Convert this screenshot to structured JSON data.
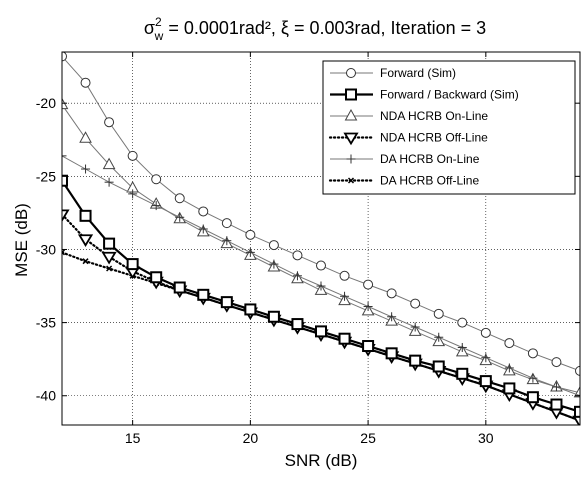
{
  "chart_data": {
    "type": "line",
    "title": {
      "sigma": "σ",
      "sup": "2",
      "sub": "w",
      "rest": " = 0.0001rad², ξ = 0.003rad, Iteration = 3"
    },
    "xlabel": "SNR (dB)",
    "ylabel": "MSE (dB)",
    "xlim": [
      12,
      34
    ],
    "ylim": [
      -42,
      -16.5
    ],
    "xticks": [
      15,
      20,
      25,
      30
    ],
    "yticks": [
      -20,
      -25,
      -30,
      -35,
      -40
    ],
    "xtick_labels": [
      "15",
      "20",
      "25",
      "30"
    ],
    "ytick_labels": [
      "-20",
      "-25",
      "-30",
      "-35",
      "-40"
    ],
    "grid": true,
    "legend_position": "top-right",
    "x": [
      12,
      13,
      14,
      15,
      16,
      17,
      18,
      19,
      20,
      21,
      22,
      23,
      24,
      25,
      26,
      27,
      28,
      29,
      30,
      31,
      32,
      33,
      34
    ],
    "series": [
      {
        "name": "Forward (Sim)",
        "marker": "circle",
        "line": "solid-thin",
        "values": [
          -16.8,
          -18.6,
          -21.3,
          -23.6,
          -25.2,
          -26.5,
          -27.4,
          -28.2,
          -29.0,
          -29.7,
          -30.4,
          -31.1,
          -31.8,
          -32.4,
          -33.0,
          -33.7,
          -34.4,
          -35.0,
          -35.7,
          -36.4,
          -37.1,
          -37.7,
          -38.3
        ]
      },
      {
        "name": "Forward / Backward (Sim)",
        "marker": "square",
        "line": "solid-thick",
        "values": [
          -25.3,
          -27.7,
          -29.6,
          -31.0,
          -31.9,
          -32.6,
          -33.1,
          -33.6,
          -34.1,
          -34.6,
          -35.1,
          -35.6,
          -36.1,
          -36.6,
          -37.1,
          -37.6,
          -38.0,
          -38.5,
          -39.0,
          -39.5,
          -40.1,
          -40.6,
          -41.1
        ]
      },
      {
        "name": "NDA HCRB On-Line",
        "marker": "triangle-up",
        "line": "solid-thin",
        "values": [
          -20.1,
          -22.4,
          -24.2,
          -25.8,
          -26.9,
          -27.9,
          -28.8,
          -29.6,
          -30.4,
          -31.2,
          -32.0,
          -32.8,
          -33.5,
          -34.2,
          -34.9,
          -35.6,
          -36.3,
          -37.0,
          -37.6,
          -38.3,
          -38.9,
          -39.4,
          -39.8
        ]
      },
      {
        "name": "NDA HCRB Off-Line",
        "marker": "triangle-down",
        "line": "dotted-thick",
        "values": [
          -27.6,
          -29.3,
          -30.5,
          -31.5,
          -32.2,
          -32.8,
          -33.3,
          -33.8,
          -34.3,
          -34.8,
          -35.3,
          -35.8,
          -36.3,
          -36.8,
          -37.3,
          -37.8,
          -38.3,
          -38.8,
          -39.3,
          -39.9,
          -40.5,
          -41.1,
          -41.7
        ]
      },
      {
        "name": "DA HCRB On-Line",
        "marker": "plus",
        "line": "solid-thin",
        "values": [
          -23.6,
          -24.5,
          -25.4,
          -26.2,
          -27.0,
          -27.8,
          -28.6,
          -29.4,
          -30.2,
          -31.0,
          -31.8,
          -32.5,
          -33.2,
          -33.9,
          -34.6,
          -35.3,
          -36.0,
          -36.7,
          -37.4,
          -38.1,
          -38.8,
          -39.4,
          -40.0
        ]
      },
      {
        "name": "DA HCRB Off-Line",
        "marker": "x-dot",
        "line": "dotted-thick",
        "values": [
          -30.2,
          -30.8,
          -31.3,
          -31.8,
          -32.3,
          -32.8,
          -33.3,
          -33.8,
          -34.3,
          -34.8,
          -35.3,
          -35.8,
          -36.3,
          -36.8,
          -37.3,
          -37.8,
          -38.3,
          -38.8,
          -39.3,
          -39.9,
          -40.5,
          -41.1,
          -41.7
        ]
      }
    ]
  }
}
